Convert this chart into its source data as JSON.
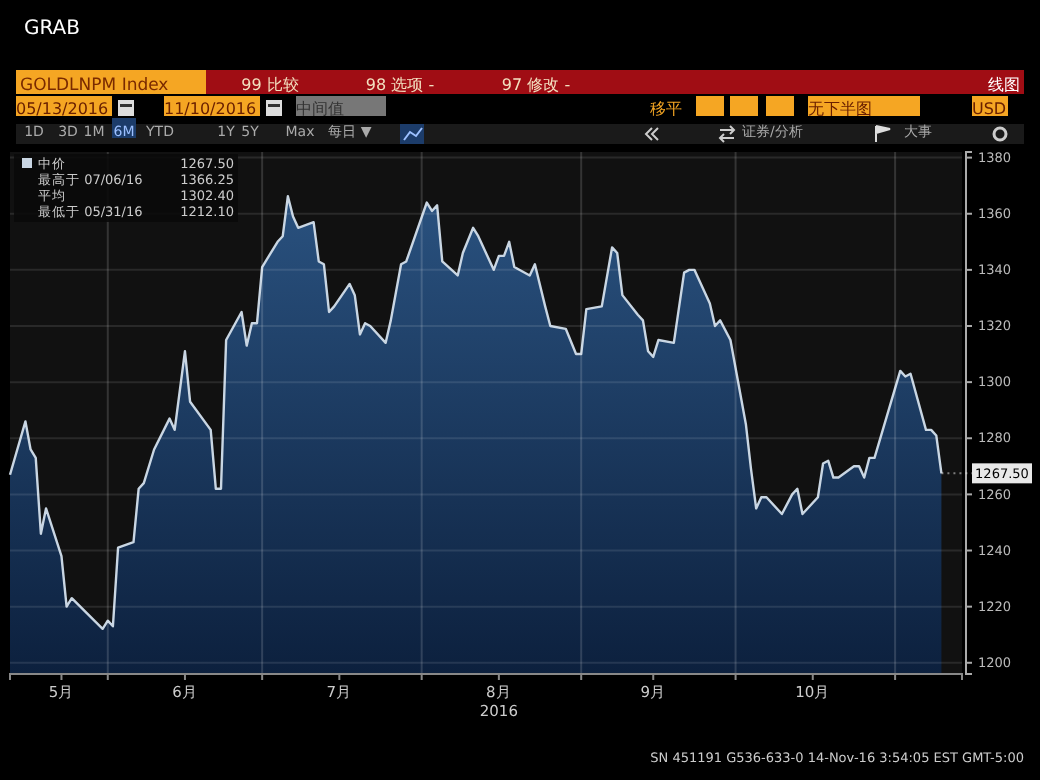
{
  "chart_data": {
    "type": "area",
    "title": "GRAB",
    "subtitle": "GOLDLNPM Index",
    "xlabel": "2016",
    "x": [
      "2016-05-13",
      "2016-05-16",
      "2016-05-17",
      "2016-05-18",
      "2016-05-19",
      "2016-05-20",
      "2016-05-23",
      "2016-05-24",
      "2016-05-25",
      "2016-05-31",
      "2016-06-01",
      "2016-06-02",
      "2016-06-03",
      "2016-06-06",
      "2016-06-07",
      "2016-06-08",
      "2016-06-10",
      "2016-06-13",
      "2016-06-14",
      "2016-06-16",
      "2016-06-17",
      "2016-06-21",
      "2016-06-22",
      "2016-06-23",
      "2016-06-24",
      "2016-06-27",
      "2016-06-28",
      "2016-06-29",
      "2016-06-30",
      "2016-07-01",
      "2016-07-04",
      "2016-07-05",
      "2016-07-06",
      "2016-07-07",
      "2016-07-08",
      "2016-07-11",
      "2016-07-12",
      "2016-07-13",
      "2016-07-14",
      "2016-07-15",
      "2016-07-18",
      "2016-07-19",
      "2016-07-20",
      "2016-07-21",
      "2016-07-22",
      "2016-07-25",
      "2016-07-26",
      "2016-07-27",
      "2016-07-28",
      "2016-07-29",
      "2016-08-02",
      "2016-08-03",
      "2016-08-04",
      "2016-08-05",
      "2016-08-08",
      "2016-08-09",
      "2016-08-11",
      "2016-08-12",
      "2016-08-15",
      "2016-08-16",
      "2016-08-17",
      "2016-08-18",
      "2016-08-19",
      "2016-08-22",
      "2016-08-23",
      "2016-08-25",
      "2016-08-26",
      "2016-08-29",
      "2016-08-31",
      "2016-09-01",
      "2016-09-02",
      "2016-09-05",
      "2016-09-07",
      "2016-09-08",
      "2016-09-09",
      "2016-09-12",
      "2016-09-13",
      "2016-09-14",
      "2016-09-15",
      "2016-09-16",
      "2016-09-19",
      "2016-09-21",
      "2016-09-22",
      "2016-09-23",
      "2016-09-26",
      "2016-09-27",
      "2016-09-28",
      "2016-09-30",
      "2016-10-03",
      "2016-10-04",
      "2016-10-05",
      "2016-10-06",
      "2016-10-07",
      "2016-10-10",
      "2016-10-12",
      "2016-10-13",
      "2016-10-14",
      "2016-10-17",
      "2016-10-18",
      "2016-10-19",
      "2016-10-20",
      "2016-10-21",
      "2016-10-24",
      "2016-10-25",
      "2016-10-26",
      "2016-10-27",
      "2016-10-28",
      "2016-11-02",
      "2016-11-03",
      "2016-11-04",
      "2016-11-07",
      "2016-11-08",
      "2016-11-09",
      "2016-11-10"
    ],
    "series": [
      {
        "name": "中价",
        "color": "#c9d6e3",
        "values": [
          1267,
          1286,
          1276,
          1273,
          1246,
          1255,
          1238,
          1220,
          1223,
          1212.1,
          1215,
          1213,
          1241,
          1243,
          1262,
          1264,
          1276,
          1287,
          1283,
          1311,
          1293,
          1283,
          1262,
          1262,
          1315,
          1325,
          1313,
          1321,
          1321,
          1341,
          1350,
          1352,
          1366.25,
          1359,
          1355,
          1357,
          1343,
          1342,
          1325,
          1327,
          1335,
          1331,
          1317,
          1321,
          1320,
          1314,
          1322,
          1332,
          1342,
          1343,
          1364,
          1361,
          1363,
          1343,
          1338,
          1346,
          1355,
          1352,
          1340,
          1345,
          1345,
          1350,
          1341,
          1338,
          1342,
          1327,
          1320,
          1319,
          1310,
          1310,
          1326,
          1327,
          1348,
          1346,
          1331,
          1324,
          1322,
          1311,
          1309,
          1315,
          1314,
          1339,
          1340,
          1340,
          1328,
          1320,
          1322,
          1315,
          1285,
          1269,
          1255,
          1259,
          1259,
          1253,
          1260,
          1262,
          1253,
          1259,
          1271,
          1272,
          1266,
          1266,
          1270,
          1270,
          1266,
          1273,
          1273,
          1304,
          1302,
          1303,
          1283,
          1283,
          1281,
          1267.5
        ]
      }
    ],
    "xlim": [
      "2016-05-13",
      "2016-11-14"
    ],
    "xticks": [
      {
        "value": "2016-05-23",
        "label": "5月"
      },
      {
        "value": "2016-06-01",
        "label": null
      },
      {
        "value": "2016-06-16",
        "label": "6月"
      },
      {
        "value": "2016-07-01",
        "label": null
      },
      {
        "value": "2016-07-16",
        "label": "7月"
      },
      {
        "value": "2016-08-01",
        "label": null
      },
      {
        "value": "2016-08-16",
        "label": "8月"
      },
      {
        "value": "2016-09-01",
        "label": null
      },
      {
        "value": "2016-09-15",
        "label": "9月"
      },
      {
        "value": "2016-10-01",
        "label": null
      },
      {
        "value": "2016-10-16",
        "label": "10月"
      },
      {
        "value": "2016-11-01",
        "label": null
      }
    ],
    "ylim": [
      1196,
      1382
    ],
    "yticks": [
      1200,
      1220,
      1240,
      1260,
      1280,
      1300,
      1320,
      1340,
      1360,
      1380
    ],
    "grid": true,
    "legend": "top left",
    "annotations": [
      "99 比较",
      "98 选项 -",
      "97 修改 -",
      "线图",
      "05/13/2016",
      "11/10/2016",
      "中间值",
      "移平",
      "无下半图",
      "USD",
      "1D",
      "3D",
      "1M",
      "6M",
      "YTD",
      "1Y",
      "5Y",
      "Max",
      "每日 ▼",
      "证券/分析",
      "大事",
      "1267.50",
      "最高于 07/06/16",
      "1366.25",
      "平均",
      "1302.40",
      "最低于 05/31/16",
      "1212.10",
      {
        "text": "1267.50",
        "x": "2016-11-10",
        "y": 1267.5
      },
      "SN 451191 G536-633-0 14-Nov-16  3:54:05 EST  GMT-5:00"
    ]
  }
}
